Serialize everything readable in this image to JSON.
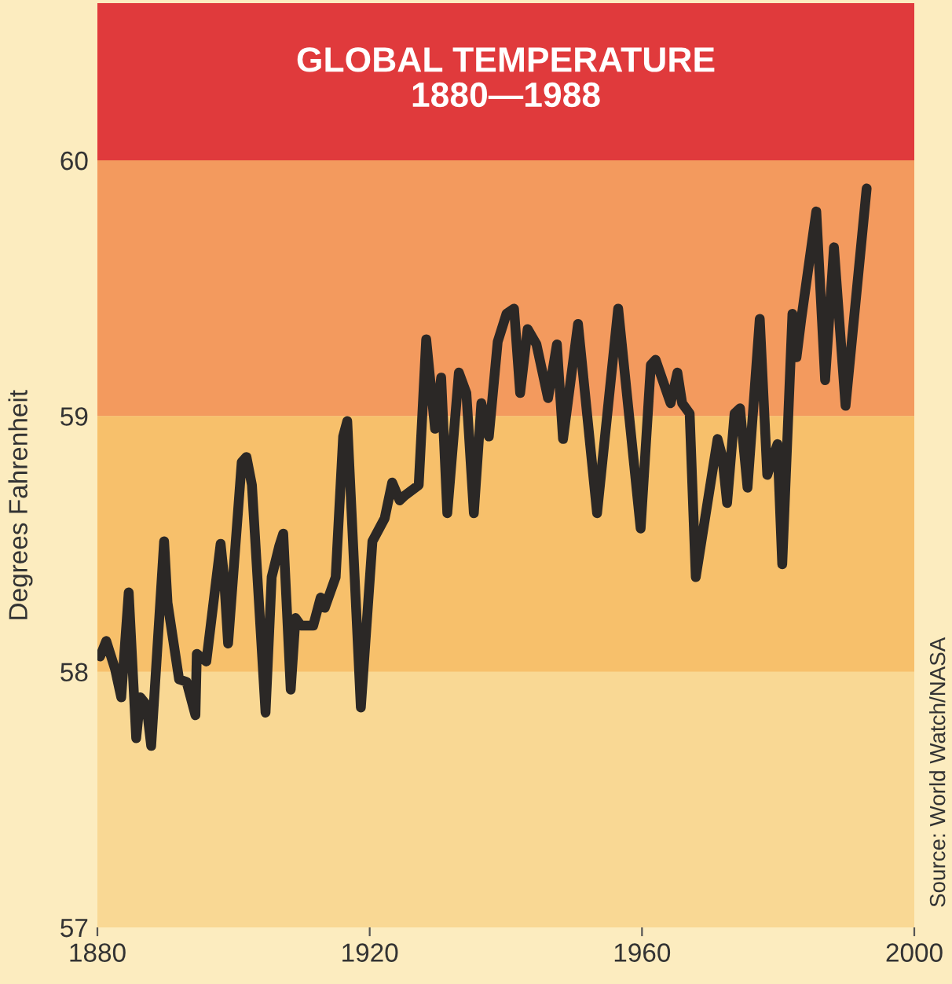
{
  "chart_data": {
    "type": "line",
    "title": "GLOBAL TEMPERATURE\n1880—1988",
    "ylabel": "Degrees Fahrenheit",
    "annotations": [
      "Source: World Watch/NASA"
    ],
    "xlim": [
      1880,
      2000
    ],
    "xticks": [
      1880,
      1920,
      1960,
      2000
    ],
    "ylim": [
      57,
      60
    ],
    "yticks": [
      57,
      58,
      59,
      60
    ],
    "grid": false,
    "marker": "none",
    "line_style": "solid",
    "bands": [
      {
        "axis": "y",
        "from": 57,
        "to": 58,
        "color": "#f9d894"
      },
      {
        "axis": "y",
        "from": 58,
        "to": 59,
        "color": "#f7c06b"
      },
      {
        "axis": "y",
        "from": 59,
        "to": 60,
        "color": "#f39a5e"
      }
    ],
    "series": [
      {
        "color": "#2b2826",
        "x": [
          1880.4,
          1881.3,
          1882.6,
          1883.5,
          1884.6,
          1885.7,
          1886.3,
          1887.2,
          1887.9,
          1889.8,
          1890.3,
          1892.0,
          1893.1,
          1894.4,
          1894.6,
          1896.0,
          1898.1,
          1898.6,
          1899.2,
          1901.2,
          1901.9,
          1902.7,
          1904.7,
          1905.6,
          1906.7,
          1907.3,
          1908.4,
          1909.1,
          1909.9,
          1911.7,
          1912.8,
          1913.4,
          1915.0,
          1916.1,
          1916.7,
          1918.7,
          1920.4,
          1922.2,
          1923.3,
          1924.4,
          1925.2,
          1927.2,
          1928.3,
          1929.6,
          1930.5,
          1931.4,
          1933.1,
          1934.2,
          1935.3,
          1936.4,
          1937.5,
          1938.8,
          1940.1,
          1941.2,
          1942.1,
          1943.2,
          1944.5,
          1946.2,
          1947.5,
          1948.4,
          1950.6,
          1953.4,
          1956.5,
          1959.8,
          1961.3,
          1962.0,
          1964.2,
          1965.2,
          1965.9,
          1967.0,
          1967.9,
          1971.1,
          1971.8,
          1972.5,
          1973.6,
          1974.4,
          1975.5,
          1977.3,
          1978.4,
          1979.9,
          1980.6,
          1982.1,
          1982.7,
          1983.4,
          1985.6,
          1986.9,
          1988.2,
          1989.9,
          1993.0
        ],
        "values": [
          58.06,
          58.12,
          58.01,
          57.9,
          58.31,
          57.74,
          57.9,
          57.87,
          57.71,
          58.51,
          58.27,
          57.97,
          57.96,
          57.83,
          58.07,
          58.04,
          58.5,
          58.37,
          58.11,
          58.82,
          58.84,
          58.73,
          57.84,
          58.37,
          58.49,
          58.54,
          57.93,
          58.21,
          58.18,
          58.18,
          58.29,
          58.25,
          58.37,
          58.92,
          58.98,
          57.86,
          58.51,
          58.6,
          58.74,
          58.67,
          58.69,
          58.73,
          59.3,
          58.95,
          59.15,
          58.62,
          59.17,
          59.09,
          58.62,
          59.05,
          58.92,
          59.29,
          59.4,
          59.42,
          59.09,
          59.34,
          59.28,
          59.07,
          59.28,
          58.91,
          59.36,
          58.62,
          59.42,
          58.56,
          59.2,
          59.22,
          59.05,
          59.17,
          59.05,
          59.01,
          58.37,
          58.91,
          58.84,
          58.66,
          59.01,
          59.03,
          58.72,
          59.38,
          58.77,
          58.89,
          58.42,
          59.4,
          59.23,
          59.38,
          59.8,
          59.14,
          59.66,
          59.04,
          59.89
        ]
      }
    ]
  }
}
